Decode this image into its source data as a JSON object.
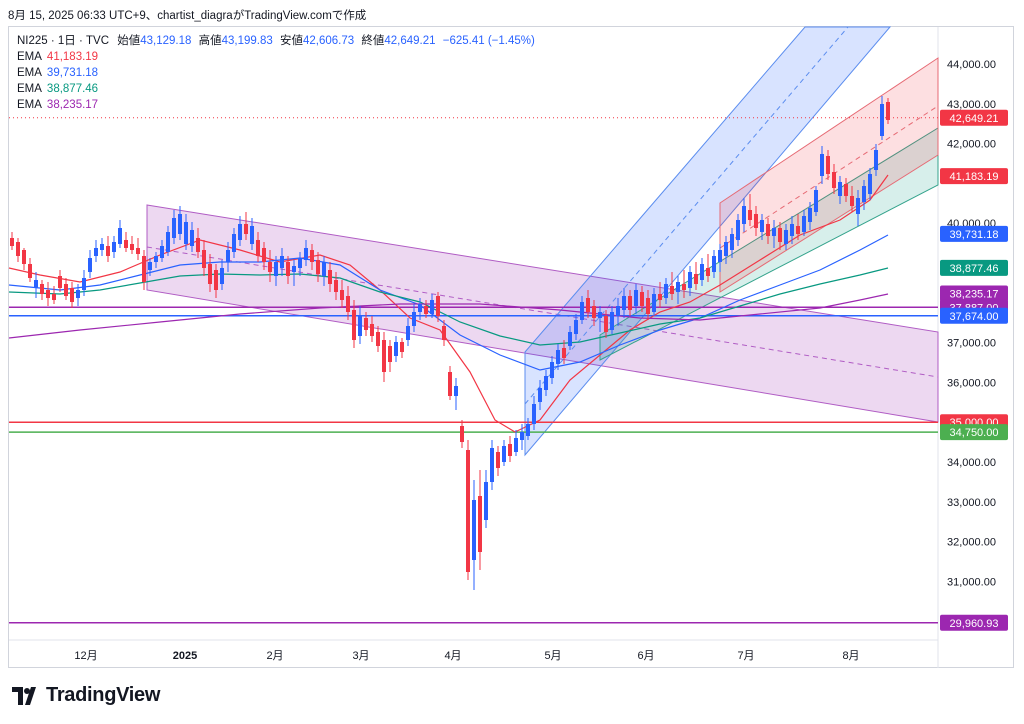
{
  "caption": "8月 15, 2025 06:33 UTC+9、chartist_diagraがTradingView.comで作成",
  "legend": {
    "symbol": "NI225 · 1日 · TVC",
    "ohlc": [
      {
        "label": "始値",
        "value": "43,129.18"
      },
      {
        "label": "高値",
        "value": "43,199.83"
      },
      {
        "label": "安値",
        "value": "42,606.73"
      },
      {
        "label": "終値",
        "value": "42,649.21"
      }
    ],
    "change": "−625.41 (−1.45%)",
    "emas": [
      {
        "label": "EMA",
        "value": "41,183.19",
        "color": "#f23645"
      },
      {
        "label": "EMA",
        "value": "39,731.18",
        "color": "#2962ff"
      },
      {
        "label": "EMA",
        "value": "38,877.46",
        "color": "#089981"
      },
      {
        "label": "EMA",
        "value": "38,235.17",
        "color": "#9c27b0"
      }
    ]
  },
  "brand": "TradingView",
  "chart_data": {
    "type": "candlestick",
    "yticks": [
      "44,000.00",
      "43,000.00",
      "42,000.00",
      "40,000.00",
      "37,000.00",
      "36,000.00",
      "34,000.00",
      "33,000.00",
      "32,000.00",
      "31,000.00"
    ],
    "xticks": [
      "12月",
      "2025",
      "2月",
      "3月",
      "4月",
      "5月",
      "6月",
      "7月",
      "8月"
    ],
    "ylim": [
      29500,
      44800
    ],
    "price_labels": [
      {
        "text": "42,649.21",
        "value": 42649.21,
        "color": "#f23645"
      },
      {
        "text": "41,183.19",
        "value": 41183.19,
        "color": "#f23645"
      },
      {
        "text": "39,731.18",
        "value": 39731.18,
        "color": "#2962ff"
      },
      {
        "text": "38,877.46",
        "value": 38877.46,
        "color": "#089981"
      },
      {
        "text": "38,235.17",
        "value": 38235.17,
        "color": "#9c27b0"
      },
      {
        "text": "37,887.00",
        "value": 37887.0,
        "color": "#9c27b0"
      },
      {
        "text": "37,674.00",
        "value": 37674.0,
        "color": "#2962ff"
      },
      {
        "text": "35,000.00",
        "value": 35000.0,
        "color": "#f23645"
      },
      {
        "text": "34,750.00",
        "value": 34750.0,
        "color": "#4caf50"
      },
      {
        "text": "29,960.93",
        "value": 29960.93,
        "color": "#9c27b0"
      }
    ],
    "hlines": [
      {
        "value": 37887,
        "color": "#9c27b0"
      },
      {
        "value": 37674,
        "color": "#2962ff"
      },
      {
        "value": 35000,
        "color": "#f23645"
      },
      {
        "value": 34750,
        "color": "#4caf50"
      },
      {
        "value": 29960.93,
        "color": "#9c27b0"
      }
    ],
    "last_price": 42649.21,
    "series": [
      {
        "name": "EMA 41,183.19",
        "color": "#f23645"
      },
      {
        "name": "EMA 39,731.18",
        "color": "#2962ff"
      },
      {
        "name": "EMA 38,877.46",
        "color": "#089981"
      },
      {
        "name": "EMA 38,235.17",
        "color": "#9c27b0"
      }
    ]
  }
}
